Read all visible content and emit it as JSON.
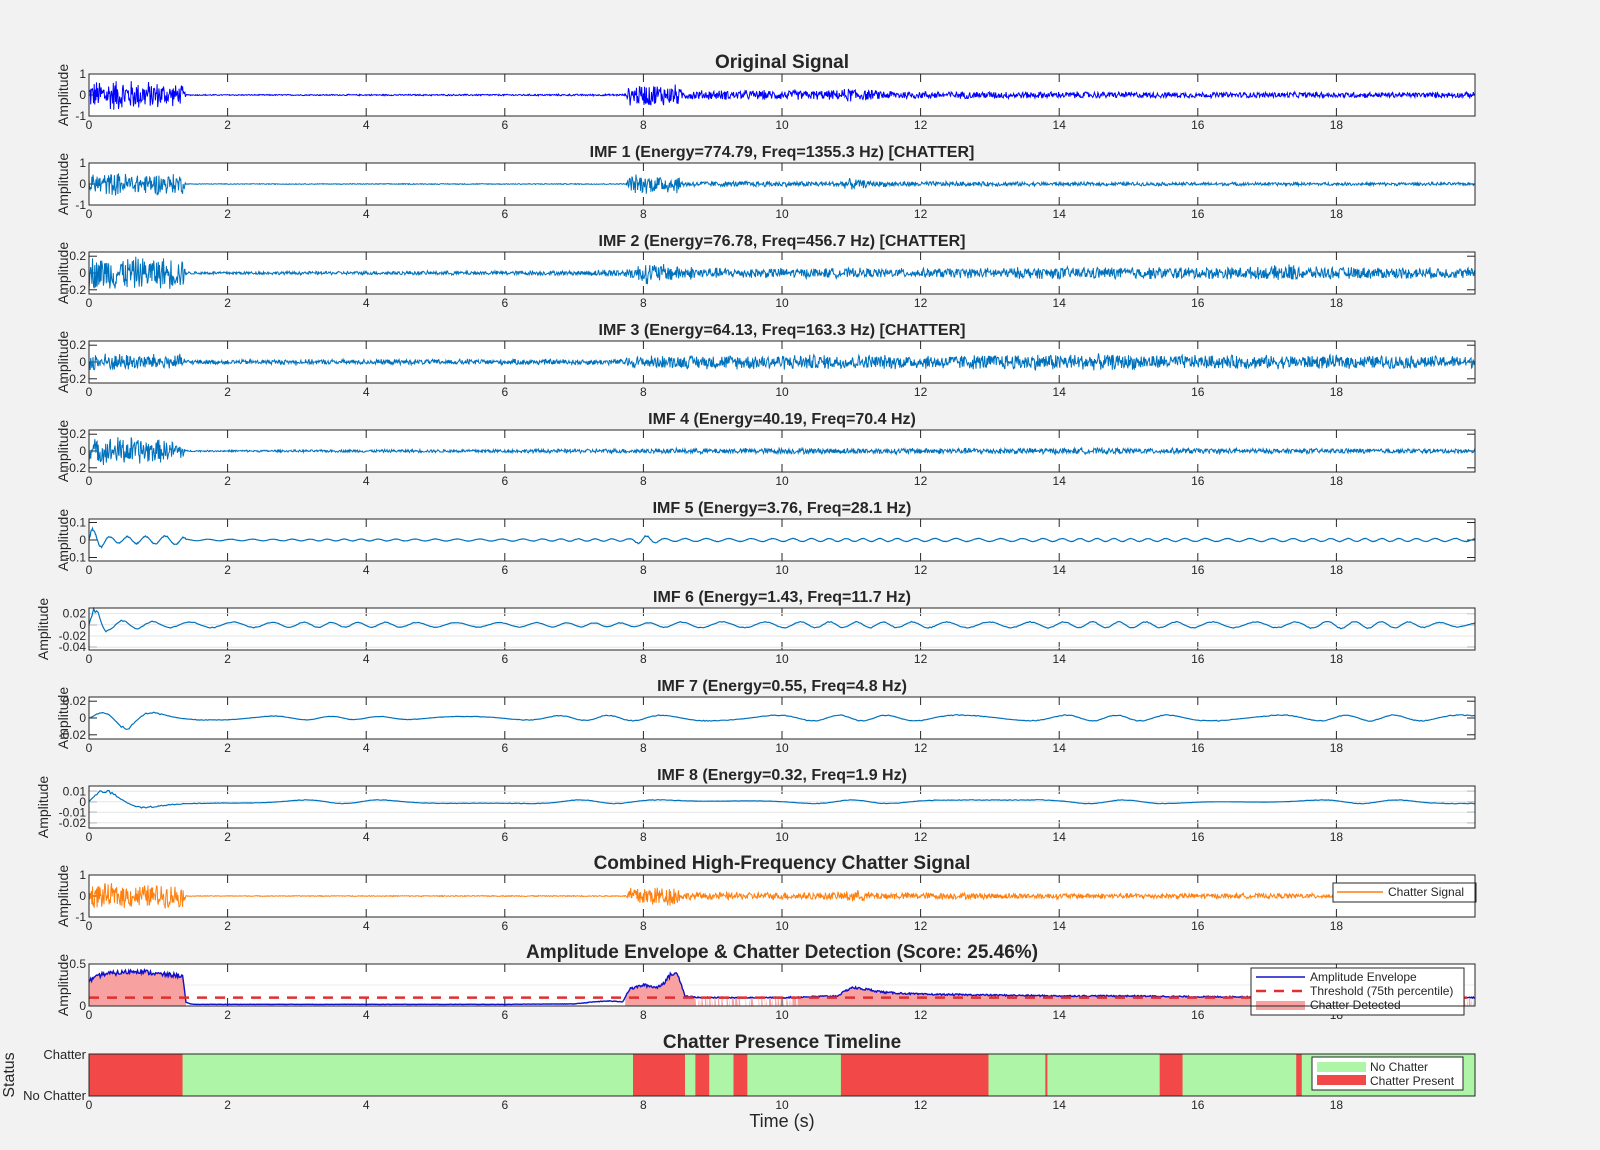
{
  "figure": {
    "xlabel": "Time (s)",
    "xlim": [
      0,
      20
    ],
    "x_ticks": [
      0,
      2,
      4,
      6,
      8,
      10,
      12,
      14,
      16,
      18
    ]
  },
  "chart_data": [
    {
      "type": "line",
      "title": "Original Signal",
      "ylabel": "Amplitude",
      "ylim": [
        -1,
        1
      ],
      "y_ticks": [
        1,
        0,
        -1
      ],
      "color": "#0000ff",
      "series": [
        {
          "values": {
            "x": [
              0,
              0.3,
              0.6,
              1.0,
              1.35,
              1.4,
              2.5,
              7.75,
              7.8,
              8.2,
              8.5,
              8.55,
              10.8,
              11.0,
              11.3,
              12.0,
              14.0,
              16.0,
              18.0,
              20.0
            ],
            "amp": [
              0.7,
              0.85,
              0.8,
              0.7,
              0.5,
              0.03,
              0.03,
              0.05,
              0.55,
              0.6,
              0.55,
              0.25,
              0.25,
              0.4,
              0.25,
              0.2,
              0.18,
              0.15,
              0.15,
              0.15
            ]
          }
        }
      ]
    },
    {
      "type": "line",
      "title": "IMF 1 (Energy=774.79, Freq=1355.3 Hz) [CHATTER]",
      "ylabel": "Amplitude",
      "ylim": [
        -1,
        1
      ],
      "y_ticks": [
        1,
        0,
        -1
      ],
      "color": "#0072bd",
      "series": [
        {
          "values": {
            "x": [
              0,
              1.35,
              1.4,
              7.75,
              7.8,
              8.5,
              8.55,
              10.8,
              11.0,
              11.3,
              14.0,
              20.0
            ],
            "amp": [
              0.6,
              0.55,
              0.02,
              0.03,
              0.5,
              0.5,
              0.15,
              0.15,
              0.3,
              0.15,
              0.1,
              0.08
            ]
          }
        }
      ]
    },
    {
      "type": "line",
      "title": "IMF 2 (Energy=76.78, Freq=456.7 Hz) [CHATTER]",
      "ylabel": "Amplitude",
      "ylim": [
        -0.25,
        0.25
      ],
      "y_ticks": [
        0.2,
        0,
        -0.2
      ],
      "color": "#0072bd",
      "series": [
        {
          "values": {
            "x": [
              0,
              1.35,
              1.4,
              7.0,
              7.8,
              8.0,
              8.5,
              9.0,
              12.0,
              14.0,
              17.0,
              17.3,
              17.6,
              20.0
            ],
            "amp": [
              0.22,
              0.2,
              0.02,
              0.03,
              0.06,
              0.15,
              0.1,
              0.07,
              0.06,
              0.08,
              0.08,
              0.12,
              0.08,
              0.07
            ]
          }
        }
      ]
    },
    {
      "type": "line",
      "title": "IMF 3 (Energy=64.13, Freq=163.3 Hz) [CHATTER]",
      "ylabel": "Amplitude",
      "ylim": [
        -0.25,
        0.25
      ],
      "y_ticks": [
        0.2,
        0,
        -0.2
      ],
      "color": "#0072bd",
      "series": [
        {
          "values": {
            "x": [
              0,
              1.35,
              1.4,
              7.7,
              7.8,
              10.0,
              12.0,
              14.0,
              16.0,
              18.0,
              20.0
            ],
            "amp": [
              0.12,
              0.1,
              0.03,
              0.04,
              0.08,
              0.1,
              0.09,
              0.11,
              0.09,
              0.09,
              0.08
            ]
          }
        }
      ]
    },
    {
      "type": "line",
      "title": "IMF 4 (Energy=40.19, Freq=70.4 Hz)",
      "ylabel": "Amplitude",
      "ylim": [
        -0.25,
        0.25
      ],
      "y_ticks": [
        0.2,
        0,
        -0.2
      ],
      "color": "#0072bd",
      "series": [
        {
          "values": {
            "x": [
              0,
              0.5,
              1.35,
              1.4,
              7.8,
              10.0,
              14.0,
              20.0
            ],
            "amp": [
              0.15,
              0.2,
              0.12,
              0.01,
              0.03,
              0.04,
              0.04,
              0.03
            ]
          }
        }
      ]
    },
    {
      "type": "line",
      "title": "IMF 5 (Energy=3.76, Freq=28.1 Hz)",
      "ylabel": "Amplitude",
      "ylim": [
        -0.12,
        0.12
      ],
      "y_ticks": [
        0.1,
        0,
        -0.1
      ],
      "color": "#0072bd",
      "series": [
        {
          "values": {
            "x": [
              0,
              0.1,
              0.3,
              1.35,
              1.4,
              7.8,
              8.0,
              8.3,
              20.0
            ],
            "amp": [
              0.08,
              0.06,
              0.02,
              0.03,
              0.005,
              0.008,
              0.03,
              0.01,
              0.01
            ]
          }
        }
      ]
    },
    {
      "type": "line",
      "title": "IMF 6 (Energy=1.43, Freq=11.7 Hz)",
      "ylabel": "Amplitude",
      "ylim": [
        -0.045,
        0.03
      ],
      "y_ticks": [
        0.02,
        0,
        -0.02,
        -0.04
      ],
      "color": "#0072bd",
      "series": [
        {
          "values": {
            "x": [
              0,
              0.15,
              0.3,
              1.0,
              8.0,
              8.5,
              17.5,
              17.8,
              20.0
            ],
            "amp": [
              0.035,
              0.03,
              0.01,
              0.006,
              0.004,
              0.006,
              0.006,
              0.008,
              0.004
            ]
          }
        }
      ]
    },
    {
      "type": "line",
      "title": "IMF 7 (Energy=0.55, Freq=4.8 Hz)",
      "ylabel": "Amplitude",
      "ylim": [
        -0.025,
        0.025
      ],
      "y_ticks": [
        0.02,
        0,
        -0.02
      ],
      "color": "#0072bd",
      "series": [
        {
          "values": {
            "x": [
              0,
              0.4,
              0.6,
              1.0,
              1.4,
              5.0,
              8.0,
              12.0,
              20.0
            ],
            "amp": [
              0.003,
              0.012,
              0.015,
              0.006,
              0.003,
              0.002,
              0.004,
              0.004,
              0.004
            ]
          }
        }
      ]
    },
    {
      "type": "line",
      "title": "IMF 8 (Energy=0.32, Freq=1.9 Hz)",
      "ylabel": "Amplitude",
      "ylim": [
        -0.025,
        0.015
      ],
      "y_ticks": [
        0.01,
        0,
        -0.01,
        -0.02
      ],
      "color": "#0072bd",
      "series": [
        {
          "values": {
            "x": [
              0,
              0.2,
              0.6,
              1.2,
              2.0,
              6.0,
              12.0,
              20.0
            ],
            "amp": [
              0.015,
              0.012,
              0.008,
              0.004,
              0.002,
              0.002,
              0.002,
              0.002
            ]
          }
        }
      ]
    },
    {
      "type": "line",
      "title": "Combined High-Frequency Chatter Signal",
      "ylabel": "Amplitude",
      "ylim": [
        -1,
        1
      ],
      "y_ticks": [
        1,
        0,
        -1
      ],
      "color": "#ff7f0e",
      "legend": {
        "entries": [
          "Chatter Signal"
        ],
        "position": "right"
      },
      "series": [
        {
          "name": "Chatter Signal",
          "values": {
            "x": [
              0,
              1.35,
              1.4,
              7.75,
              7.8,
              8.5,
              8.55,
              10.8,
              11.0,
              11.3,
              14.0,
              20.0
            ],
            "amp": [
              0.65,
              0.6,
              0.02,
              0.03,
              0.55,
              0.55,
              0.2,
              0.2,
              0.35,
              0.2,
              0.15,
              0.12
            ]
          }
        }
      ]
    },
    {
      "type": "area",
      "title": "Amplitude Envelope & Chatter Detection (Score: 25.46%)",
      "ylabel": "Amplitude",
      "ylim": [
        0,
        0.5
      ],
      "y_ticks": [
        0.5,
        0
      ],
      "legend": {
        "entries": [
          "Amplitude Envelope",
          "Threshold (75th percentile)",
          "Chatter Detected"
        ],
        "position": "top-right"
      },
      "threshold": 0.1,
      "series": [
        {
          "name": "Amplitude Envelope",
          "x": [
            0,
            0.2,
            0.5,
            0.7,
            1.0,
            1.35,
            1.4,
            1.5,
            2.0,
            4.0,
            6.0,
            7.0,
            7.3,
            7.5,
            7.7,
            7.8,
            8.0,
            8.2,
            8.3,
            8.4,
            8.5,
            8.6,
            8.8,
            9.0,
            10.0,
            10.8,
            11.0,
            11.2,
            11.5,
            12.0,
            13.0,
            14.0,
            15.0,
            16.0,
            17.0,
            18.0,
            19.0,
            20.0
          ],
          "y": [
            0.3,
            0.38,
            0.4,
            0.42,
            0.38,
            0.36,
            0.04,
            0.02,
            0.02,
            0.02,
            0.02,
            0.025,
            0.05,
            0.06,
            0.05,
            0.2,
            0.25,
            0.22,
            0.28,
            0.38,
            0.38,
            0.12,
            0.1,
            0.1,
            0.1,
            0.12,
            0.22,
            0.2,
            0.16,
            0.14,
            0.13,
            0.12,
            0.12,
            0.11,
            0.11,
            0.1,
            0.1,
            0.1
          ]
        },
        {
          "name": "Threshold (75th percentile)",
          "y": 0.1
        },
        {
          "name": "Chatter Detected"
        }
      ]
    },
    {
      "type": "bar",
      "title": "Chatter Presence Timeline",
      "ylabel": "Status",
      "y_categories": [
        "Chatter",
        "No Chatter"
      ],
      "legend": {
        "entries": [
          "No Chatter",
          "Chatter Present"
        ],
        "position": "right"
      },
      "chatter_intervals": [
        [
          0,
          1.35
        ],
        [
          7.85,
          8.6
        ],
        [
          8.75,
          8.95
        ],
        [
          9.3,
          9.5
        ],
        [
          10.85,
          12.98
        ],
        [
          13.8,
          13.83
        ],
        [
          15.45,
          15.78
        ],
        [
          17.42,
          17.5
        ]
      ]
    }
  ]
}
